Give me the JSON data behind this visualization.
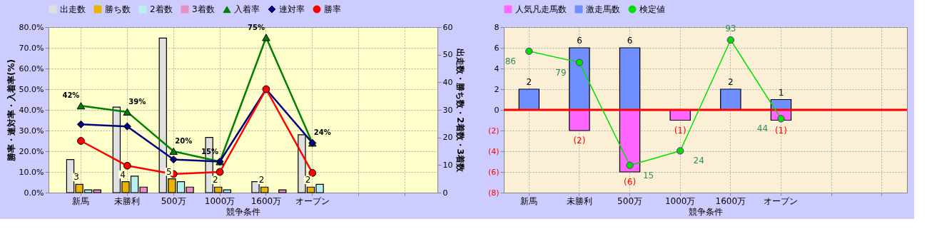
{
  "chart_data": [
    {
      "type": "bar",
      "categories": [
        "新馬",
        "未勝利",
        "500万",
        "1000万",
        "1600万",
        "オープン",
        null,
        null
      ],
      "xlabel": "競争条件",
      "ylabel": "勝率・連対率・入着率(%)",
      "y2label": "出走数・勝ち数・2着数・3着数",
      "ylim": [
        0,
        80
      ],
      "yticks": [
        {
          "value": 0,
          "label": "0.0%"
        },
        {
          "value": 10,
          "label": "10.0%"
        },
        {
          "value": 20,
          "label": "20.0%"
        },
        {
          "value": 30,
          "label": "30.0%"
        },
        {
          "value": 40,
          "label": "40.0%"
        },
        {
          "value": 50,
          "label": "50.0%"
        },
        {
          "value": 60,
          "label": "60.0%"
        },
        {
          "value": 70,
          "label": "70.0%"
        },
        {
          "value": 80,
          "label": "80.0%"
        }
      ],
      "y2lim": [
        0,
        60
      ],
      "y2ticks": [
        0,
        10,
        20,
        30,
        40,
        50,
        60
      ],
      "grid": true,
      "legend": "top",
      "series": [
        {
          "name": "出走数",
          "color": "#e0e0e0",
          "axis": "y2",
          "values": [
            12,
            31,
            56,
            20,
            4,
            21,
            null,
            null
          ]
        },
        {
          "name": "勝ち数",
          "color": "#e8b400",
          "axis": "y2",
          "values": [
            3,
            4,
            5,
            2,
            2,
            2,
            null,
            null
          ],
          "value_labels": [
            "3",
            "4",
            "5",
            "2",
            "2",
            "2",
            null,
            null
          ]
        },
        {
          "name": "2着数",
          "color": "#b8f0f0",
          "axis": "y2",
          "values": [
            1,
            6,
            4,
            1,
            null,
            3,
            null,
            null
          ]
        },
        {
          "name": "3着数",
          "color": "#e890c0",
          "axis": "y2",
          "values": [
            1,
            2,
            2,
            null,
            1,
            null,
            null,
            null
          ]
        },
        {
          "name": "入着率",
          "type": "line",
          "color": "#008000",
          "marker": "triangle",
          "values": [
            42,
            39,
            20,
            15,
            75,
            24,
            null,
            null
          ],
          "value_labels": [
            "42%",
            "39%",
            "20%",
            "15%",
            "75%",
            "24%",
            null,
            null
          ]
        },
        {
          "name": "連対率",
          "type": "line",
          "color": "#000080",
          "marker": "diamond",
          "values": [
            33,
            32,
            16,
            15,
            50,
            24,
            null,
            null
          ]
        },
        {
          "name": "勝率",
          "type": "line",
          "color": "#ff0000",
          "marker": "circle",
          "values": [
            25,
            13,
            9,
            10,
            50,
            9.5,
            null,
            null
          ]
        }
      ]
    },
    {
      "type": "bar",
      "stacked": true,
      "categories": [
        "新馬",
        "未勝利",
        "500万",
        "1000万",
        "1600万",
        "オープン",
        null,
        null
      ],
      "xlabel": "競争条件",
      "ylim": [
        -8,
        8
      ],
      "y2lim": [
        -2,
        101
      ],
      "yticks": [
        {
          "value": -8,
          "label": "(8)"
        },
        {
          "value": -6,
          "label": "(6)"
        },
        {
          "value": -4,
          "label": "(4)"
        },
        {
          "value": -2,
          "label": "(2)"
        },
        0,
        2,
        4,
        6,
        8
      ],
      "grid": true,
      "legend": "top",
      "ref_lines": [
        {
          "axis": "y",
          "value": 0,
          "color": "#ff0000"
        }
      ],
      "series": [
        {
          "name": "人気凡走馬数",
          "color": "#ff66ff",
          "values": [
            null,
            -2,
            -6,
            -1,
            null,
            -1,
            null,
            null
          ],
          "value_labels": [
            null,
            "(2)",
            "(6)",
            "(1)",
            null,
            "(1)",
            null,
            null
          ]
        },
        {
          "name": "激走馬数",
          "color": "#6f8fff",
          "values": [
            2,
            6,
            6,
            null,
            2,
            1,
            null,
            null
          ],
          "value_labels": [
            "2",
            "6",
            "6",
            null,
            "2",
            "1",
            null,
            null
          ]
        },
        {
          "name": "検定値",
          "type": "line",
          "color": "#00e000",
          "marker": "circle",
          "axis": "y2",
          "values": [
            86,
            79,
            15,
            24,
            93,
            44,
            null,
            null
          ],
          "value_labels": [
            "86",
            "79",
            "15",
            "24",
            "93",
            "44",
            null,
            null
          ]
        }
      ]
    }
  ]
}
